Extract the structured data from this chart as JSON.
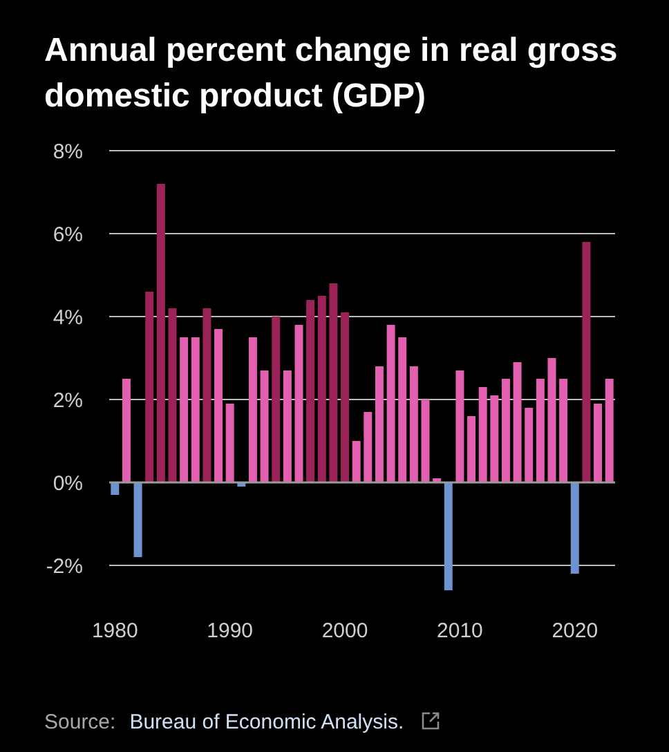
{
  "chart_data": {
    "type": "bar",
    "title": "Annual percent change in real gross domestic product (GDP)",
    "x": [
      1980,
      1981,
      1982,
      1983,
      1984,
      1985,
      1986,
      1987,
      1988,
      1989,
      1990,
      1991,
      1992,
      1993,
      1994,
      1995,
      1996,
      1997,
      1998,
      1999,
      2000,
      2001,
      2002,
      2003,
      2004,
      2005,
      2006,
      2007,
      2008,
      2009,
      2010,
      2011,
      2012,
      2013,
      2014,
      2015,
      2016,
      2017,
      2018,
      2019,
      2020,
      2021,
      2022,
      2023
    ],
    "values": [
      -0.3,
      2.5,
      -1.8,
      4.6,
      7.2,
      4.2,
      3.5,
      3.5,
      4.2,
      3.7,
      1.9,
      -0.1,
      3.5,
      2.7,
      4.0,
      2.7,
      3.8,
      4.4,
      4.5,
      4.8,
      4.1,
      1.0,
      1.7,
      2.8,
      3.8,
      3.5,
      2.8,
      2.0,
      0.1,
      -2.6,
      2.7,
      1.6,
      2.3,
      2.1,
      2.5,
      2.9,
      1.8,
      2.5,
      3.0,
      2.5,
      -2.2,
      5.8,
      1.9,
      2.5
    ],
    "colors": [
      "#6f93d1",
      "#e35fb0",
      "#6f93d1",
      "#9b2359",
      "#9b2359",
      "#9b2359",
      "#e35fb0",
      "#e35fb0",
      "#9b2359",
      "#e35fb0",
      "#e35fb0",
      "#6f93d1",
      "#e35fb0",
      "#e35fb0",
      "#9b2359",
      "#e35fb0",
      "#e35fb0",
      "#9b2359",
      "#9b2359",
      "#9b2359",
      "#9b2359",
      "#e35fb0",
      "#e35fb0",
      "#e35fb0",
      "#e35fb0",
      "#e35fb0",
      "#e35fb0",
      "#e35fb0",
      "#e35fb0",
      "#6f93d1",
      "#e35fb0",
      "#e35fb0",
      "#e35fb0",
      "#e35fb0",
      "#e35fb0",
      "#e35fb0",
      "#e35fb0",
      "#e35fb0",
      "#e35fb0",
      "#e35fb0",
      "#6f93d1",
      "#9b2359",
      "#e35fb0",
      "#e35fb0"
    ],
    "xlim": [
      1979.5,
      2023.5
    ],
    "xticks": [
      1980,
      1990,
      2000,
      2010,
      2020
    ],
    "ylim": [
      -2.6,
      8
    ],
    "yticks": [
      {
        "value": -2,
        "label": "-2%"
      },
      {
        "value": 0,
        "label": "0%"
      },
      {
        "value": 2,
        "label": "2%"
      },
      {
        "value": 4,
        "label": "4%"
      },
      {
        "value": 6,
        "label": "6%"
      },
      {
        "value": 8,
        "label": "8%"
      }
    ],
    "grid": "y",
    "annotations": [
      "Source:",
      "Bureau of Economic Analysis."
    ]
  }
}
